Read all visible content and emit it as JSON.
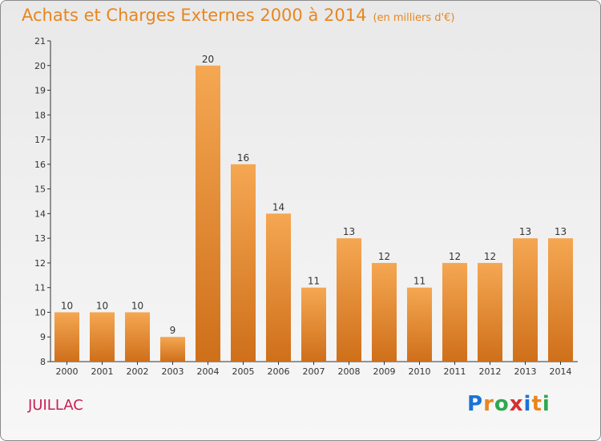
{
  "title": "Achats et Charges Externes 2000 à 2014",
  "subtitle": "(en milliers d'€)",
  "place": "JUILLAC",
  "logo": {
    "text": "Proxiti",
    "letter_colors": [
      "#1a73d6",
      "#e8861f",
      "#2fa84f",
      "#d62f2f",
      "#1a73d6",
      "#e8861f",
      "#2fa84f"
    ]
  },
  "colors": {
    "bar_top": "#f5a752",
    "bar_bottom": "#cf6f1a",
    "title": "#e8861f",
    "place": "#c81f53"
  },
  "chart_data": {
    "type": "bar",
    "categories": [
      "2000",
      "2001",
      "2002",
      "2003",
      "2004",
      "2005",
      "2006",
      "2007",
      "2008",
      "2009",
      "2010",
      "2011",
      "2012",
      "2013",
      "2014"
    ],
    "values": [
      10,
      10,
      10,
      9,
      20,
      16,
      14,
      11,
      13,
      12,
      11,
      12,
      12,
      13,
      13
    ],
    "ylim": [
      8,
      21
    ],
    "yticks": [
      8,
      9,
      10,
      11,
      12,
      13,
      14,
      15,
      16,
      17,
      18,
      19,
      20,
      21
    ],
    "grid": false,
    "legend": "none"
  }
}
